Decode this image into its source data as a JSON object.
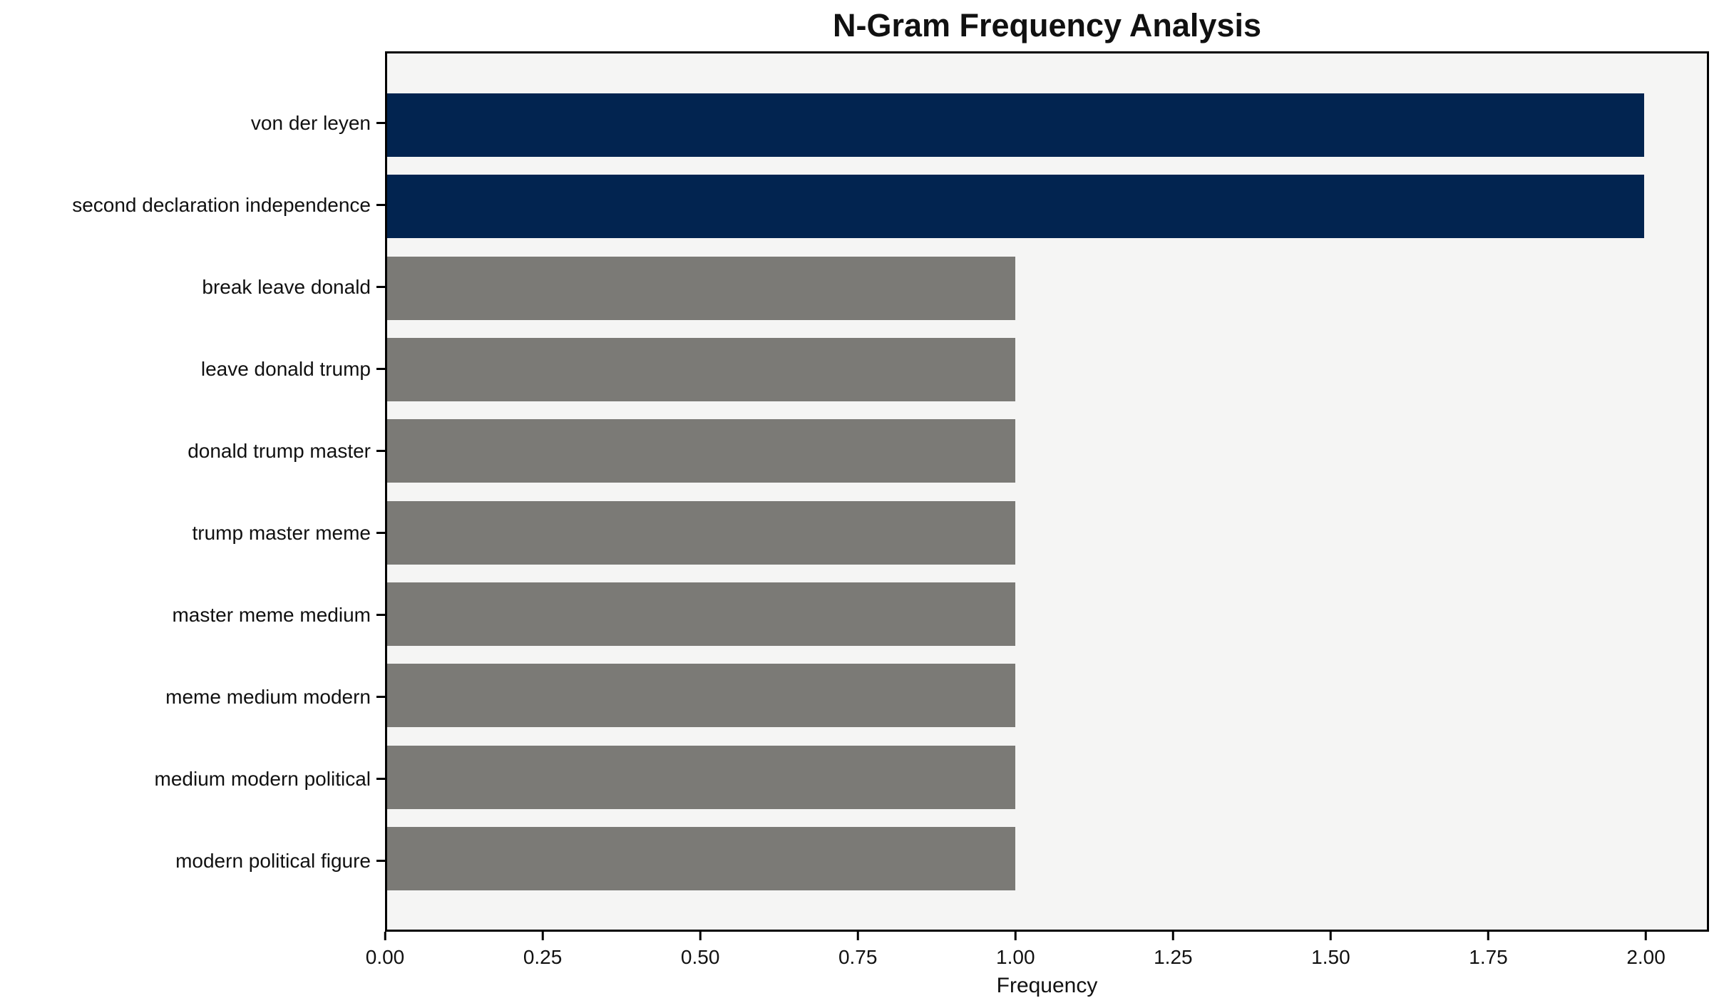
{
  "chart_data": {
    "type": "bar",
    "orientation": "horizontal",
    "title": "N-Gram Frequency Analysis",
    "xlabel": "Frequency",
    "ylabel": "",
    "categories": [
      "von der leyen",
      "second declaration independence",
      "break leave donald",
      "leave donald trump",
      "donald trump master",
      "trump master meme",
      "master meme medium",
      "meme medium modern",
      "medium modern political",
      "modern political figure"
    ],
    "values": [
      2,
      2,
      1,
      1,
      1,
      1,
      1,
      1,
      1,
      1
    ],
    "bar_colors": [
      "#022450",
      "#022450",
      "#7b7a76",
      "#7b7a76",
      "#7b7a76",
      "#7b7a76",
      "#7b7a76",
      "#7b7a76",
      "#7b7a76",
      "#7b7a76"
    ],
    "highlight_color": "#022450",
    "default_color": "#7b7a76",
    "plot_background": "#f5f5f4",
    "figure_background": "#ffffff",
    "xlim": [
      0,
      2.1
    ],
    "xticks": [
      0,
      0.25,
      0.5,
      0.75,
      1.0,
      1.25,
      1.5,
      1.75,
      2.0
    ],
    "xtick_labels": [
      "0.00",
      "0.25",
      "0.50",
      "0.75",
      "1.00",
      "1.25",
      "1.50",
      "1.75",
      "2.00"
    ],
    "grid": false,
    "legend": null
  }
}
